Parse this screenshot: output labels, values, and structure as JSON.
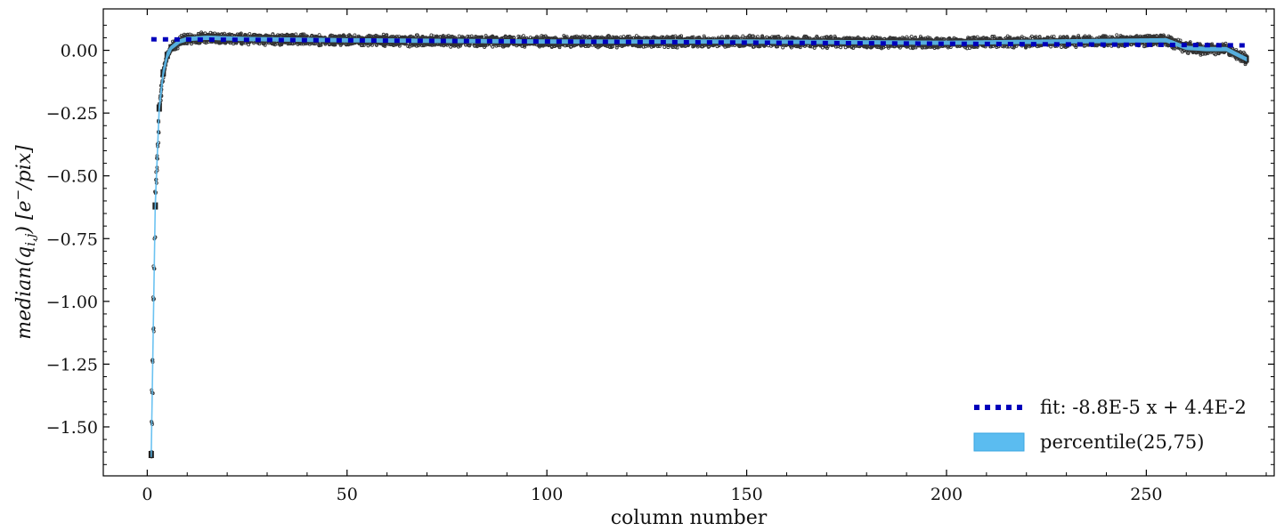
{
  "chart_data": {
    "type": "scatter",
    "xlabel": "column number",
    "ylabel": "median(q_{i,j}) [e^{-}/pix]",
    "ylabel_parts": {
      "head": "median(q",
      "sub": "i,j",
      "mid": ") [e",
      "sup": "−",
      "tail": "/pix]"
    },
    "xlim": [
      -11,
      282
    ],
    "ylim": [
      -1.695,
      0.165
    ],
    "x_ticks": [
      0,
      50,
      100,
      150,
      200,
      250
    ],
    "x_tick_labels": [
      "0",
      "50",
      "100",
      "150",
      "200",
      "250"
    ],
    "y_ticks": [
      0.0,
      -0.25,
      -0.5,
      -0.75,
      -1.0,
      -1.25,
      -1.5
    ],
    "y_tick_labels": [
      "0.00",
      "−0.25",
      "−0.50",
      "−0.75",
      "−1.00",
      "−1.25",
      "−1.50"
    ],
    "grid": false,
    "legend_position": "bottom-right",
    "colors": {
      "fit": "#0000bb",
      "band": "#5bbcf0",
      "points": "#222222",
      "axes": "#000000"
    },
    "series": [
      {
        "name": "fit: -8.8E-5 x + 4.4E-2",
        "kind": "dotted-line",
        "slope": -8.8e-05,
        "intercept": 0.044,
        "x_range": [
          1,
          275
        ]
      },
      {
        "name": "percentile(25,75)",
        "kind": "band",
        "x": [
          1,
          2,
          3,
          4,
          5,
          6,
          8,
          10,
          15,
          25,
          50,
          100,
          150,
          200,
          255,
          260,
          265,
          270,
          275
        ],
        "median": [
          -1.61,
          -0.62,
          -0.23,
          -0.09,
          -0.02,
          0.01,
          0.035,
          0.045,
          0.05,
          0.045,
          0.04,
          0.035,
          0.035,
          0.03,
          0.04,
          0.01,
          0.005,
          0.005,
          -0.035
        ]
      },
      {
        "kind": "points",
        "x_range": [
          1,
          275
        ],
        "median_curve": "same-as-band",
        "scatter": 0.018
      }
    ]
  }
}
